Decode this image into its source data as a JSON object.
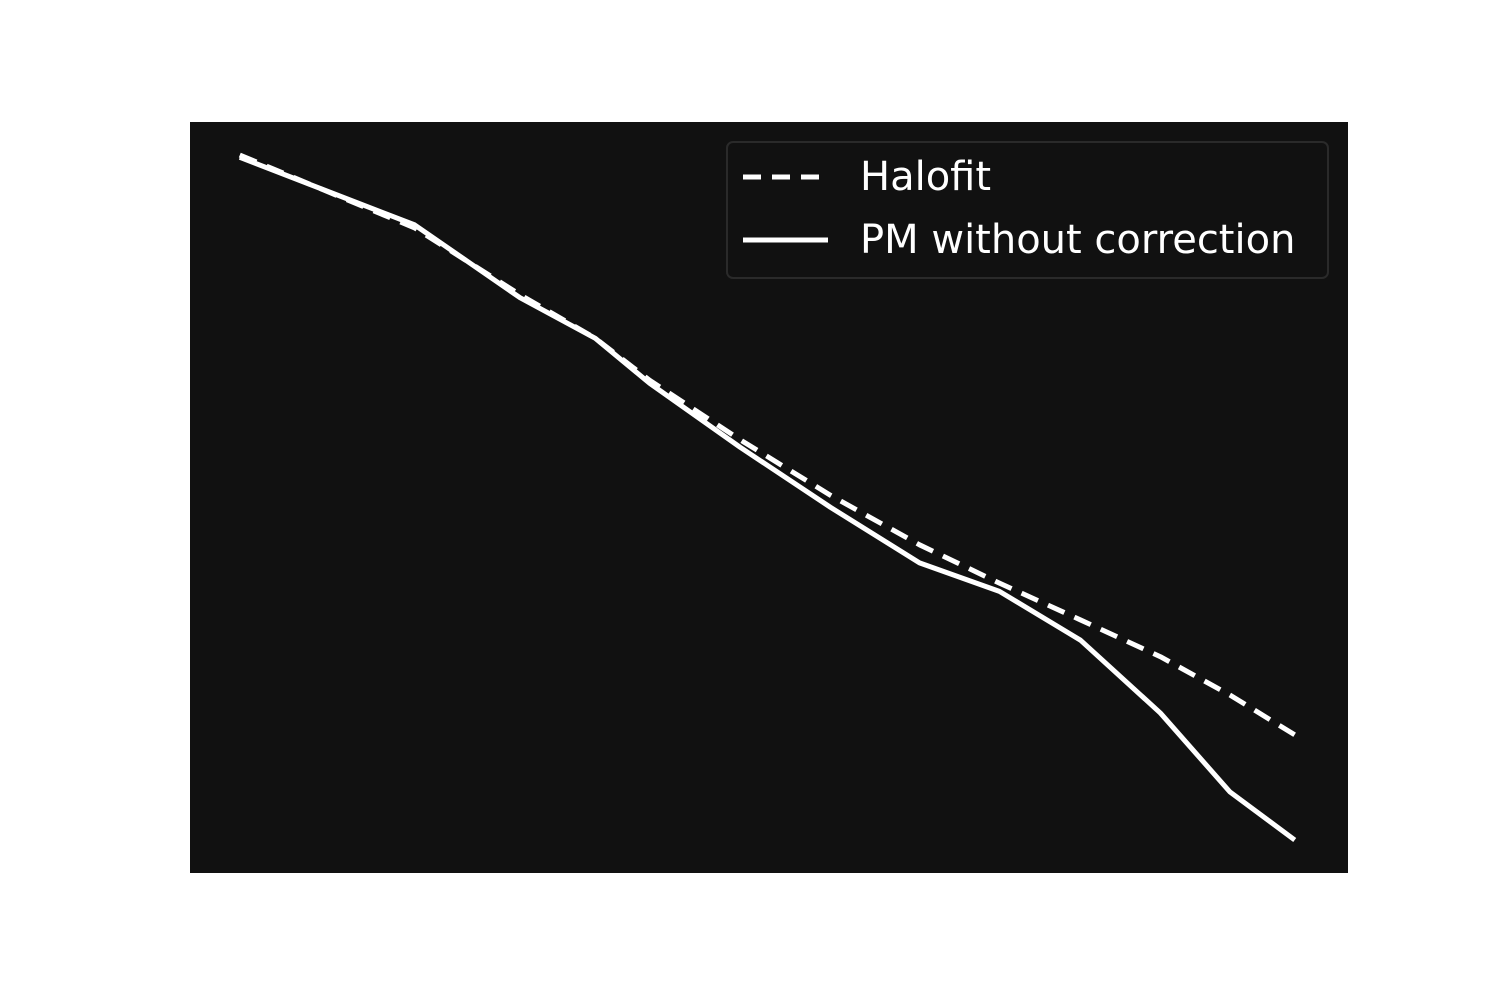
{
  "chart_data": {
    "type": "line",
    "x": [
      0.043,
      0.194,
      0.285,
      0.35,
      0.397,
      0.475,
      0.553,
      0.63,
      0.699,
      0.769,
      0.838,
      0.898,
      0.954
    ],
    "series": [
      {
        "name": "Halofit",
        "color": "#ffffff",
        "linestyle": "dashed",
        "values": [
          0.956,
          0.859,
          0.77,
          0.712,
          0.656,
          0.577,
          0.503,
          0.437,
          0.386,
          0.337,
          0.288,
          0.237,
          0.184
        ]
      },
      {
        "name": "PM without correction",
        "color": "#ffffff",
        "linestyle": "solid",
        "values": [
          0.953,
          0.863,
          0.766,
          0.712,
          0.652,
          0.567,
          0.487,
          0.413,
          0.375,
          0.31,
          0.213,
          0.108,
          0.044
        ]
      }
    ],
    "xlim": [
      0,
      1
    ],
    "ylim": [
      0,
      1
    ],
    "background": "#111111",
    "legend": "upper-right"
  }
}
